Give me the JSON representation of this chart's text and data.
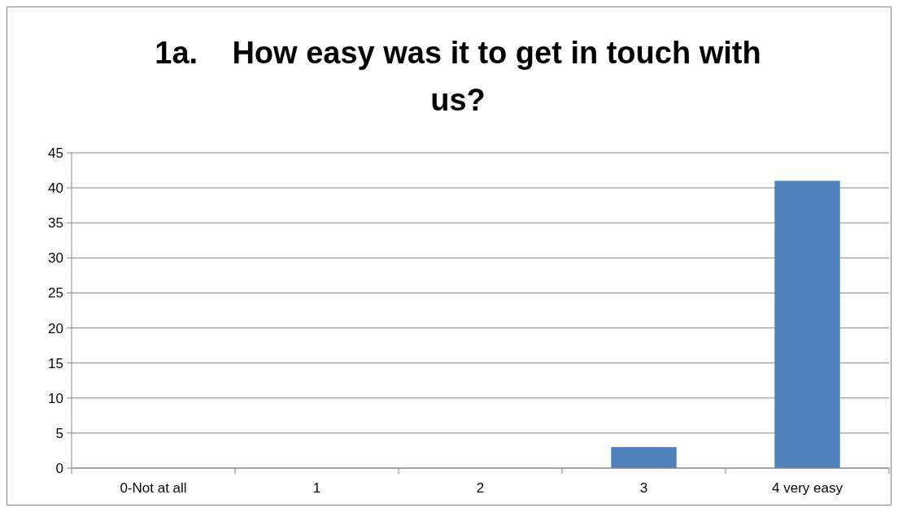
{
  "chart_data": {
    "type": "bar",
    "title": "1a.    How easy was it to get in touch with us?",
    "categories": [
      "0-Not at all",
      "1",
      "2",
      "3",
      "4 very easy"
    ],
    "values": [
      0,
      0,
      0,
      3,
      41
    ],
    "color": "#4f81bd",
    "ylim": [
      0,
      45
    ],
    "yticks": [
      0,
      5,
      10,
      15,
      20,
      25,
      30,
      35,
      40,
      45
    ],
    "grid": "y"
  }
}
